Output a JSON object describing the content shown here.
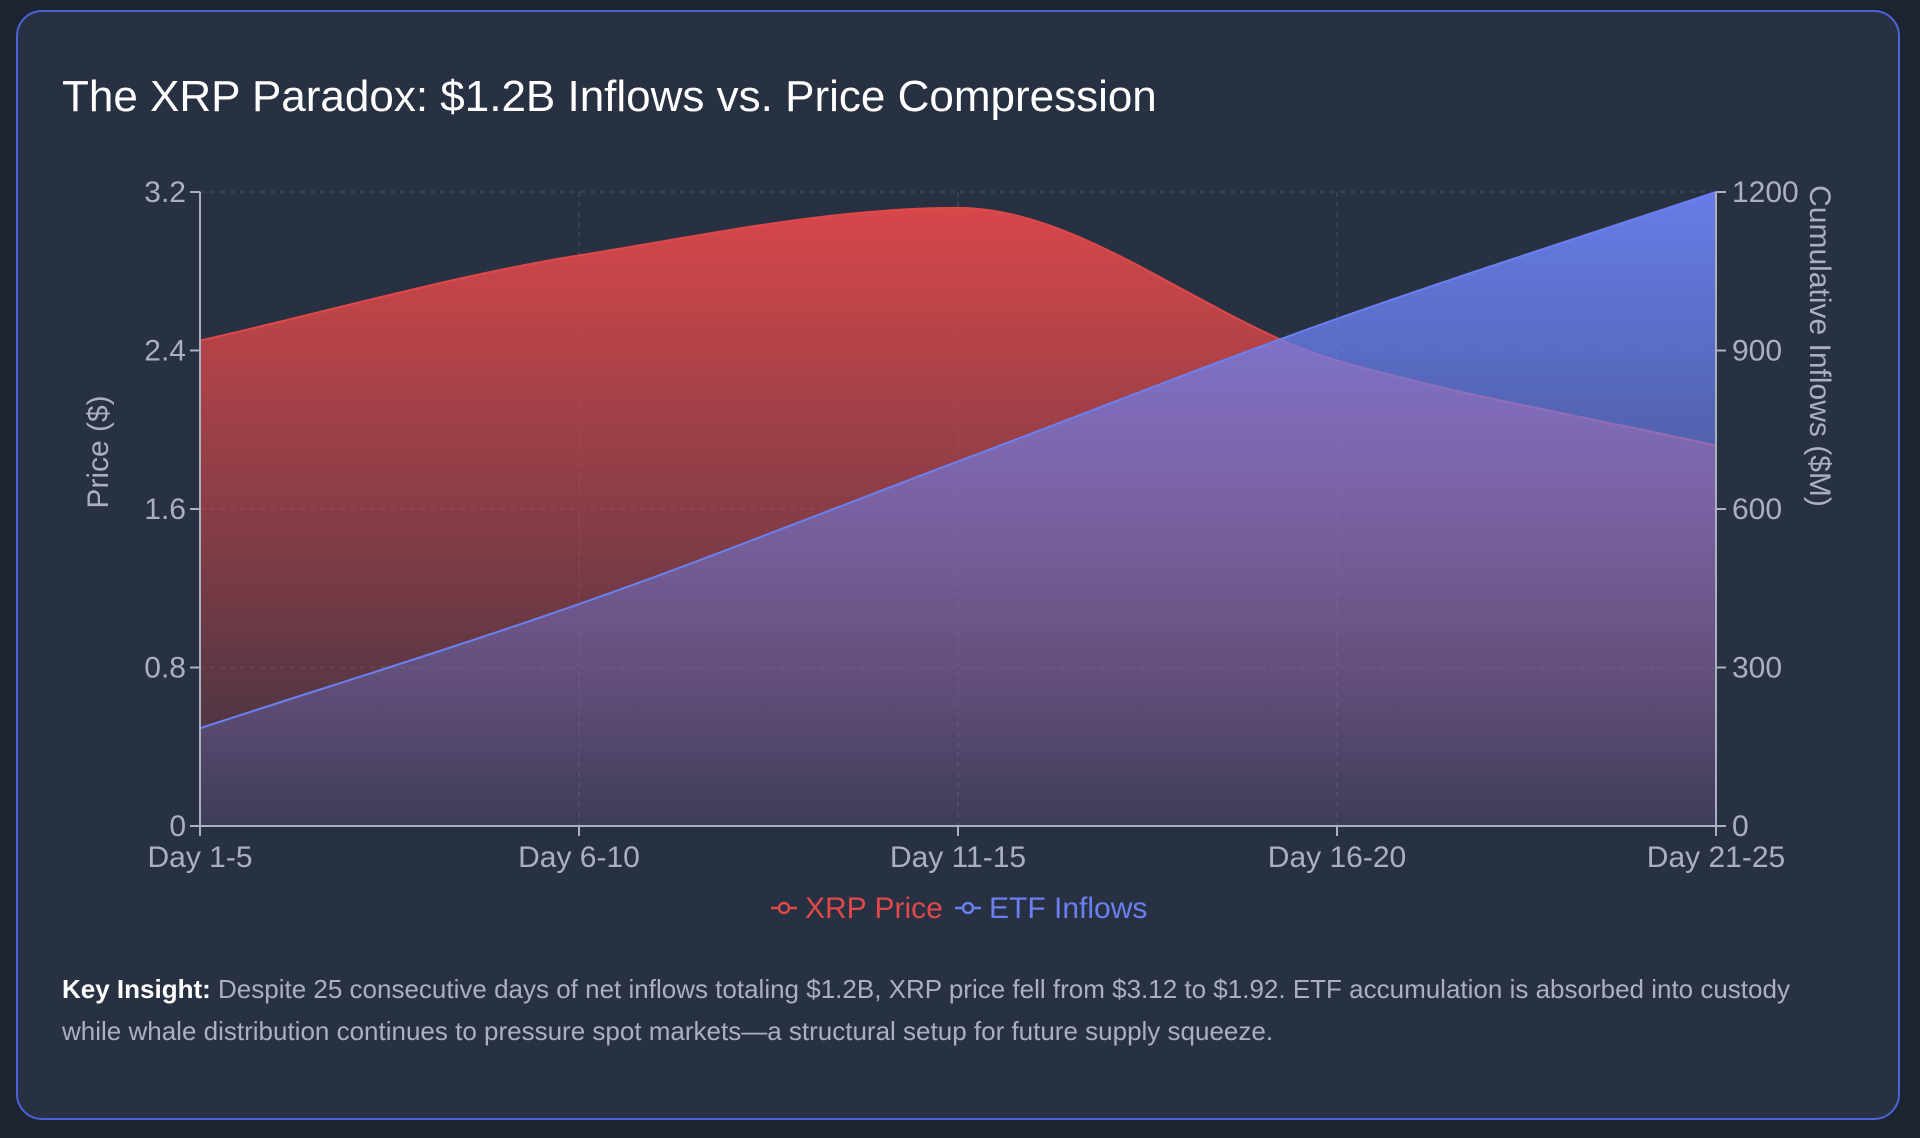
{
  "title": "The XRP Paradox: $1.2B Inflows vs. Price Compression",
  "insight": {
    "label": "Key Insight:",
    "text": " Despite 25 consecutive days of net inflows totaling $1.2B, XRP price fell from $3.12 to $1.92. ETF accumulation is absorbed into custody while whale distribution continues to pressure spot markets—a structural setup for future supply squeeze."
  },
  "colors": {
    "price": "#e0484a",
    "inflows": "#6b80f0",
    "grid": "#3c4557",
    "axis": "#a9b1bf",
    "text_muted": "#a9b1bf"
  },
  "chart_data": {
    "type": "area",
    "categories": [
      "Day 1-5",
      "Day 6-10",
      "Day 11-15",
      "Day 16-20",
      "Day 21-25"
    ],
    "series": [
      {
        "name": "XRP Price",
        "axis": "left",
        "values": [
          2.45,
          2.88,
          3.12,
          2.35,
          1.92
        ],
        "color": "#e0484a"
      },
      {
        "name": "ETF Inflows",
        "axis": "right",
        "values": [
          185,
          420,
          690,
          960,
          1200
        ],
        "color": "#6b80f0"
      }
    ],
    "y_left": {
      "label": "Price ($)",
      "min": 0,
      "max": 3.2,
      "ticks": [
        "0",
        "0.8",
        "1.6",
        "2.4",
        "3.2"
      ]
    },
    "y_right": {
      "label": "Cumulative Inflows ($M)",
      "min": 0,
      "max": 1200,
      "ticks": [
        "0",
        "300",
        "600",
        "900",
        "1200"
      ]
    },
    "legend": [
      "XRP Price",
      "ETF Inflows"
    ],
    "legend_position": "bottom-center",
    "grid": true
  }
}
